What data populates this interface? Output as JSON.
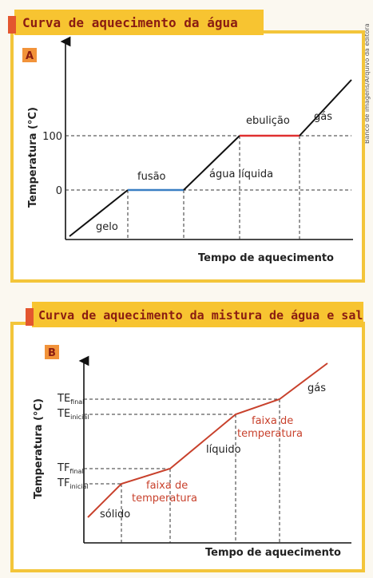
{
  "side_credit": "Banco de imagens/Arquivo da editora",
  "panel_a": {
    "title": "Curva de aquecimento da água",
    "letter": "A",
    "y_label": "Temperatura (°C)",
    "x_label": "Tempo de aquecimento",
    "yticks": [
      "100",
      "0"
    ],
    "phases": [
      "gelo",
      "fusão",
      "água líquida",
      "ebulição",
      "gás"
    ]
  },
  "panel_b": {
    "title": "Curva de aquecimento da mistura de água e sal",
    "letter": "B",
    "y_label": "Temperatura (°C)",
    "x_label": "Tempo de aquecimento",
    "yticks": [
      {
        "main": "TE",
        "sub": "final"
      },
      {
        "main": "TE",
        "sub": "inicial"
      },
      {
        "main": "TF",
        "sub": "final"
      },
      {
        "main": "TF",
        "sub": "inicial"
      }
    ],
    "phases": [
      "sólido",
      "faixa de",
      "temperatura",
      "líquido",
      "faixa de",
      "temperatura",
      "gás"
    ]
  }
}
